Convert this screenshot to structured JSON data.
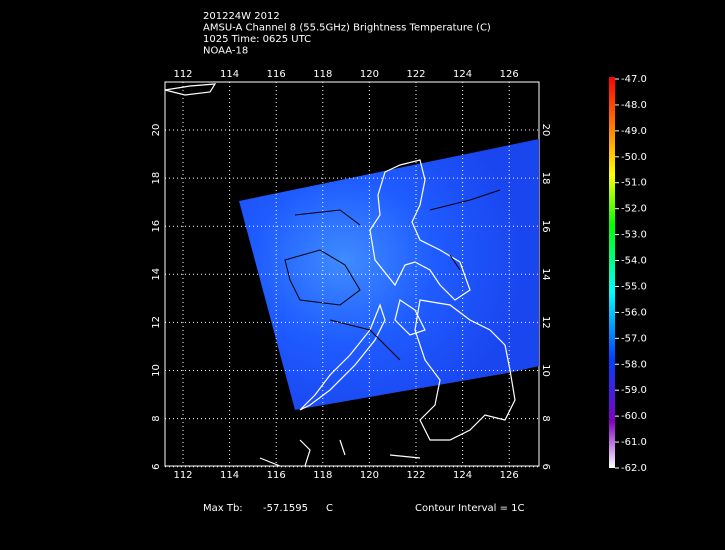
{
  "header": {
    "lines": [
      "201224W 2012",
      "AMSU-A Channel 8 (55.5GHz) Brightness Temperature (C)",
      "1025 Time: 0625 UTC",
      "NOAA-18"
    ]
  },
  "map": {
    "lon_ticks": [
      112,
      114,
      116,
      118,
      120,
      122,
      124,
      126
    ],
    "lat_ticks": [
      20,
      18,
      16,
      14,
      12,
      10,
      8,
      6
    ]
  },
  "colorbar": {
    "labels": [
      "-47.0",
      "-48.0",
      "-49.0",
      "-50.0",
      "-51.0",
      "-52.0",
      "-53.0",
      "-54.0",
      "-55.0",
      "-56.0",
      "-57.0",
      "-58.0",
      "-59.0",
      "-60.0",
      "-61.0",
      "-62.0"
    ]
  },
  "footer": {
    "max_label": "Max Tb:",
    "max_value": "-57.1595",
    "max_unit": "C",
    "contour": "Contour Interval = 1C"
  }
}
